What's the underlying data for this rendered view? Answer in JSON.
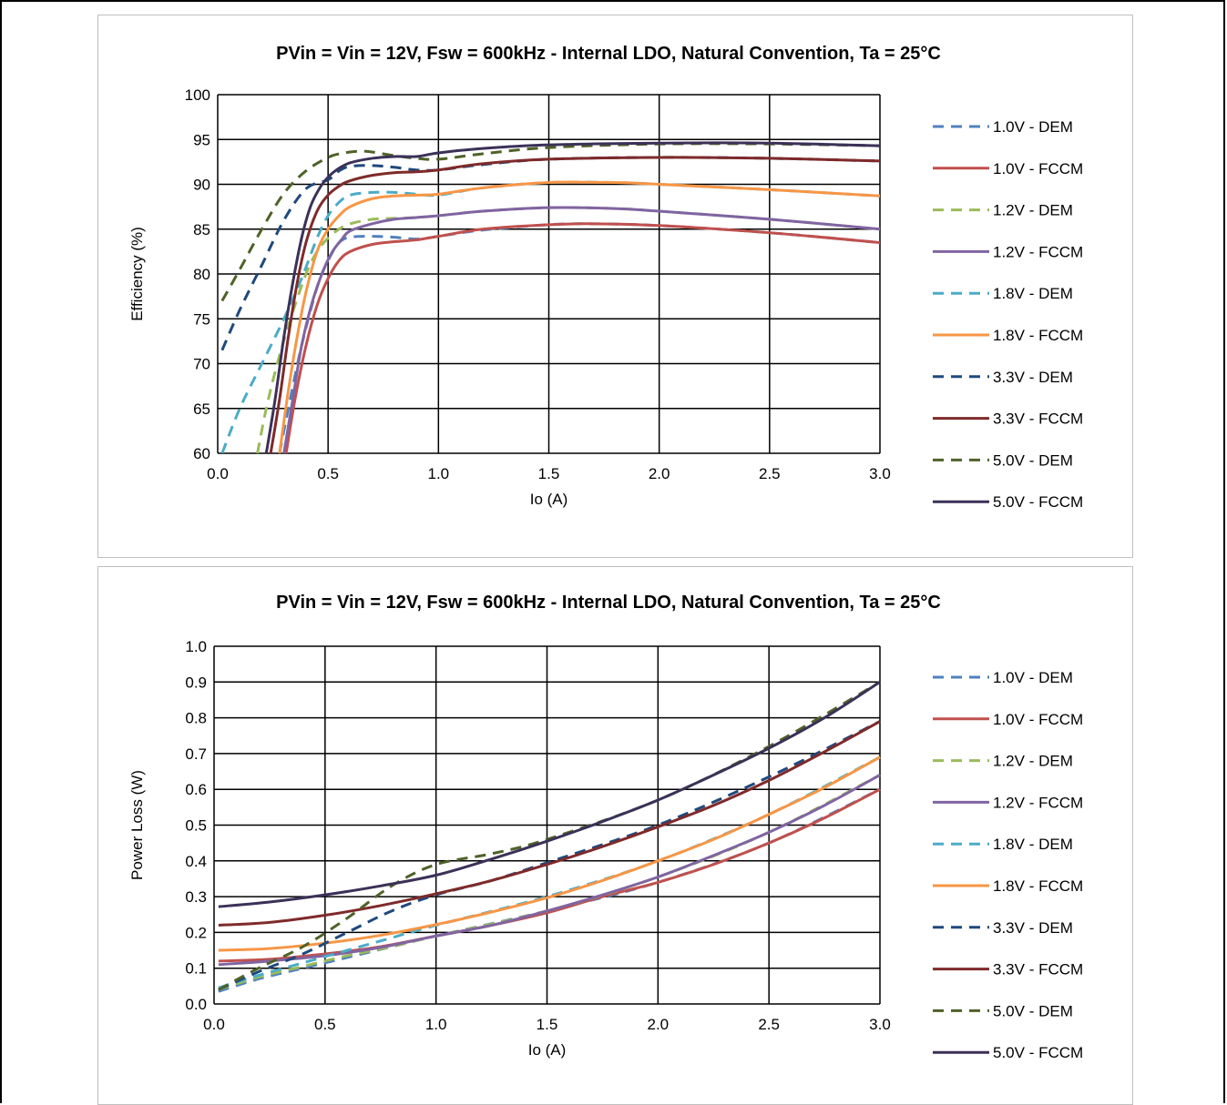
{
  "chart_data": [
    {
      "type": "line",
      "title": "PVin = Vin = 12V, Fsw = 600kHz - Internal LDO, Natural Convention, Ta = 25°C",
      "xlabel": "Io (A)",
      "ylabel": "Efficiency (%)",
      "xlim": [
        0,
        3
      ],
      "ylim": [
        60,
        100
      ],
      "x_ticks": [
        "0.0",
        "0.5",
        "1.0",
        "1.5",
        "2.0",
        "2.5",
        "3.0"
      ],
      "y_ticks": [
        "60",
        "65",
        "70",
        "75",
        "80",
        "85",
        "90",
        "95",
        "100"
      ],
      "grid": true,
      "legend_position": "right",
      "series": [
        {
          "name": "1.0V - DEM",
          "color": "#4f81bd",
          "dash": true,
          "x": [
            0.28,
            0.32,
            0.38,
            0.45,
            0.5,
            0.55,
            0.6,
            0.7,
            0.8,
            0.9,
            1.0,
            1.2,
            1.5,
            1.7,
            2.0,
            2.5,
            3.0
          ],
          "y": [
            60,
            65,
            72,
            78.5,
            81.5,
            83.5,
            84.1,
            84.2,
            84.1,
            83.9,
            84.2,
            84.9,
            85.5,
            85.6,
            85.4,
            84.6,
            83.5
          ]
        },
        {
          "name": "1.0V - FCCM",
          "color": "#c0504d",
          "dash": false,
          "x": [
            0.31,
            0.35,
            0.4,
            0.45,
            0.5,
            0.55,
            0.6,
            0.7,
            0.8,
            0.9,
            1.0,
            1.2,
            1.5,
            1.7,
            2.0,
            2.5,
            3.0
          ],
          "y": [
            60,
            66,
            72,
            76.5,
            79.5,
            81.5,
            82.5,
            83.3,
            83.6,
            83.8,
            84.2,
            85,
            85.5,
            85.6,
            85.4,
            84.6,
            83.5
          ]
        },
        {
          "name": "1.2V - DEM",
          "color": "#9bbb59",
          "dash": true,
          "x": [
            0.18,
            0.22,
            0.27,
            0.33,
            0.4,
            0.45,
            0.5,
            0.55,
            0.6,
            0.7,
            0.8,
            0.9,
            1.0,
            1.2,
            1.5,
            1.8,
            2.0,
            2.5,
            3.0
          ],
          "y": [
            60,
            65,
            70,
            75,
            80,
            82.5,
            84,
            85,
            85.6,
            86.1,
            86.2,
            86.3,
            86.5,
            87,
            87.4,
            87.3,
            87,
            86.1,
            85
          ]
        },
        {
          "name": "1.2V - FCCM",
          "color": "#8064a2",
          "dash": false,
          "x": [
            0.3,
            0.34,
            0.38,
            0.43,
            0.48,
            0.52,
            0.56,
            0.6,
            0.7,
            0.8,
            0.9,
            1.0,
            1.2,
            1.5,
            1.8,
            2.0,
            2.5,
            3.0
          ],
          "y": [
            60,
            66,
            72,
            77,
            80.5,
            82.5,
            83.8,
            84.8,
            85.6,
            86.1,
            86.3,
            86.5,
            87,
            87.4,
            87.3,
            87,
            86.1,
            85
          ]
        },
        {
          "name": "1.8V - DEM",
          "color": "#4bacc6",
          "dash": true,
          "x": [
            0.02,
            0.1,
            0.2,
            0.3,
            0.38,
            0.45,
            0.5,
            0.55,
            0.6,
            0.7,
            0.8,
            0.9,
            1.0,
            1.2,
            1.5,
            1.8,
            2.0,
            2.5,
            3.0
          ],
          "y": [
            60,
            65,
            70,
            75,
            79.5,
            84,
            86.5,
            88,
            88.8,
            89.1,
            89.1,
            88.9,
            88.8,
            89.6,
            90.2,
            90.2,
            90,
            89.4,
            88.7
          ]
        },
        {
          "name": "1.8V - FCCM",
          "color": "#f79646",
          "dash": false,
          "x": [
            0.28,
            0.32,
            0.36,
            0.4,
            0.45,
            0.5,
            0.55,
            0.6,
            0.7,
            0.8,
            0.9,
            1.0,
            1.2,
            1.5,
            1.8,
            2.0,
            2.5,
            3.0
          ],
          "y": [
            60,
            67,
            73,
            78,
            82.5,
            85,
            86.5,
            87.5,
            88.4,
            88.7,
            88.8,
            88.9,
            89.6,
            90.2,
            90.2,
            90,
            89.4,
            88.7
          ]
        },
        {
          "name": "3.3V - DEM",
          "color": "#1f497d",
          "dash": true,
          "x": [
            0.02,
            0.1,
            0.2,
            0.3,
            0.4,
            0.5,
            0.55,
            0.6,
            0.7,
            0.8,
            0.9,
            1.0,
            1.2,
            1.5,
            2.0,
            2.5,
            3.0
          ],
          "y": [
            71.5,
            76,
            81,
            86,
            89.5,
            90.5,
            91.5,
            92,
            92.1,
            91.9,
            91.6,
            91.6,
            92.2,
            92.8,
            93,
            92.9,
            92.6
          ]
        },
        {
          "name": "3.3V - FCCM",
          "color": "#7f2a2a",
          "dash": false,
          "x": [
            0.24,
            0.28,
            0.32,
            0.36,
            0.4,
            0.45,
            0.5,
            0.55,
            0.6,
            0.7,
            0.8,
            0.9,
            1.0,
            1.2,
            1.5,
            2.0,
            2.5,
            3.0
          ],
          "y": [
            60,
            66,
            73,
            79,
            83.5,
            87,
            88.8,
            89.8,
            90.4,
            91,
            91.3,
            91.4,
            91.6,
            92.3,
            92.8,
            93,
            92.9,
            92.6
          ]
        },
        {
          "name": "5.0V - DEM",
          "color": "#4f6228",
          "dash": true,
          "x": [
            0.02,
            0.1,
            0.2,
            0.3,
            0.4,
            0.5,
            0.55,
            0.6,
            0.65,
            0.7,
            0.8,
            0.9,
            1.0,
            1.2,
            1.5,
            2.0,
            2.5,
            3.0
          ],
          "y": [
            77,
            80.5,
            85,
            89,
            91.5,
            93,
            93.4,
            93.6,
            93.7,
            93.6,
            93.2,
            92.9,
            92.8,
            93.4,
            94.1,
            94.5,
            94.5,
            94.3
          ]
        },
        {
          "name": "5.0V - FCCM",
          "color": "#3b3158",
          "dash": false,
          "x": [
            0.22,
            0.26,
            0.3,
            0.34,
            0.38,
            0.42,
            0.46,
            0.5,
            0.55,
            0.6,
            0.7,
            0.8,
            0.9,
            1.0,
            1.2,
            1.5,
            2.0,
            2.5,
            3.0
          ],
          "y": [
            60,
            66,
            73,
            79,
            84,
            87.5,
            89.5,
            90.8,
            91.8,
            92.4,
            92.9,
            93.1,
            93.1,
            93.5,
            94,
            94.4,
            94.6,
            94.6,
            94.3
          ]
        }
      ]
    },
    {
      "type": "line",
      "title": "PVin = Vin = 12V, Fsw = 600kHz - Internal LDO, Natural Convention, Ta = 25°C",
      "xlabel": "Io (A)",
      "ylabel": "Power Loss (W)",
      "xlim": [
        0,
        3
      ],
      "ylim": [
        0,
        1
      ],
      "x_ticks": [
        "0.0",
        "0.5",
        "1.0",
        "1.5",
        "2.0",
        "2.5",
        "3.0"
      ],
      "y_ticks": [
        "0.0",
        "0.1",
        "0.2",
        "0.3",
        "0.4",
        "0.5",
        "0.6",
        "0.7",
        "0.8",
        "0.9",
        "1.0"
      ],
      "grid": true,
      "legend_position": "right",
      "series": [
        {
          "name": "1.0V - DEM",
          "color": "#4f81bd",
          "dash": true,
          "x": [
            0.02,
            0.2,
            0.4,
            0.6,
            0.8,
            1.0,
            1.5,
            2.0,
            2.5,
            3.0
          ],
          "y": [
            0.035,
            0.07,
            0.1,
            0.13,
            0.16,
            0.19,
            0.26,
            0.34,
            0.45,
            0.6
          ]
        },
        {
          "name": "1.0V - FCCM",
          "color": "#c0504d",
          "dash": false,
          "x": [
            0.02,
            0.25,
            0.5,
            0.75,
            1.0,
            1.25,
            1.5,
            1.75,
            2.0,
            2.25,
            2.5,
            2.75,
            3.0
          ],
          "y": [
            0.12,
            0.125,
            0.14,
            0.16,
            0.19,
            0.22,
            0.255,
            0.3,
            0.34,
            0.39,
            0.45,
            0.52,
            0.6
          ]
        },
        {
          "name": "1.2V - DEM",
          "color": "#9bbb59",
          "dash": true,
          "x": [
            0.02,
            0.2,
            0.4,
            0.6,
            0.8,
            1.0,
            1.5,
            2.0,
            2.5,
            3.0
          ],
          "y": [
            0.04,
            0.075,
            0.105,
            0.135,
            0.16,
            0.19,
            0.26,
            0.355,
            0.48,
            0.64
          ]
        },
        {
          "name": "1.2V - FCCM",
          "color": "#8064a2",
          "dash": false,
          "x": [
            0.02,
            0.25,
            0.5,
            0.75,
            1.0,
            1.25,
            1.5,
            1.75,
            2.0,
            2.25,
            2.5,
            2.75,
            3.0
          ],
          "y": [
            0.11,
            0.12,
            0.135,
            0.158,
            0.19,
            0.22,
            0.26,
            0.305,
            0.355,
            0.415,
            0.48,
            0.555,
            0.64
          ]
        },
        {
          "name": "1.8V - DEM",
          "color": "#4bacc6",
          "dash": true,
          "x": [
            0.02,
            0.2,
            0.4,
            0.6,
            0.8,
            1.0,
            1.5,
            2.0,
            2.5,
            3.0
          ],
          "y": [
            0.045,
            0.08,
            0.115,
            0.15,
            0.185,
            0.22,
            0.3,
            0.4,
            0.53,
            0.69
          ]
        },
        {
          "name": "1.8V - FCCM",
          "color": "#f79646",
          "dash": false,
          "x": [
            0.02,
            0.25,
            0.5,
            0.75,
            1.0,
            1.25,
            1.5,
            1.75,
            2.0,
            2.25,
            2.5,
            2.75,
            3.0
          ],
          "y": [
            0.15,
            0.155,
            0.17,
            0.192,
            0.222,
            0.257,
            0.297,
            0.345,
            0.4,
            0.46,
            0.53,
            0.605,
            0.69
          ]
        },
        {
          "name": "3.3V - DEM",
          "color": "#1f497d",
          "dash": true,
          "x": [
            0.02,
            0.2,
            0.4,
            0.6,
            0.8,
            1.0,
            1.25,
            1.5,
            2.0,
            2.5,
            3.0
          ],
          "y": [
            0.04,
            0.09,
            0.14,
            0.2,
            0.26,
            0.305,
            0.345,
            0.395,
            0.5,
            0.635,
            0.79
          ]
        },
        {
          "name": "3.3V - FCCM",
          "color": "#7f2a2a",
          "dash": false,
          "x": [
            0.02,
            0.25,
            0.5,
            0.75,
            1.0,
            1.25,
            1.5,
            1.75,
            2.0,
            2.25,
            2.5,
            2.75,
            3.0
          ],
          "y": [
            0.22,
            0.228,
            0.248,
            0.275,
            0.308,
            0.345,
            0.39,
            0.44,
            0.495,
            0.555,
            0.625,
            0.705,
            0.79
          ]
        },
        {
          "name": "5.0V - DEM",
          "color": "#4f6228",
          "dash": true,
          "x": [
            0.02,
            0.2,
            0.4,
            0.6,
            0.8,
            1.0,
            1.25,
            1.5,
            2.0,
            2.5,
            3.0
          ],
          "y": [
            0.04,
            0.1,
            0.16,
            0.24,
            0.33,
            0.39,
            0.42,
            0.46,
            0.57,
            0.72,
            0.9
          ]
        },
        {
          "name": "5.0V - FCCM",
          "color": "#3b3158",
          "dash": false,
          "x": [
            0.02,
            0.25,
            0.5,
            0.75,
            1.0,
            1.25,
            1.5,
            1.75,
            2.0,
            2.25,
            2.5,
            2.75,
            3.0
          ],
          "y": [
            0.272,
            0.285,
            0.305,
            0.33,
            0.36,
            0.405,
            0.455,
            0.51,
            0.57,
            0.64,
            0.715,
            0.8,
            0.9
          ]
        }
      ]
    }
  ]
}
